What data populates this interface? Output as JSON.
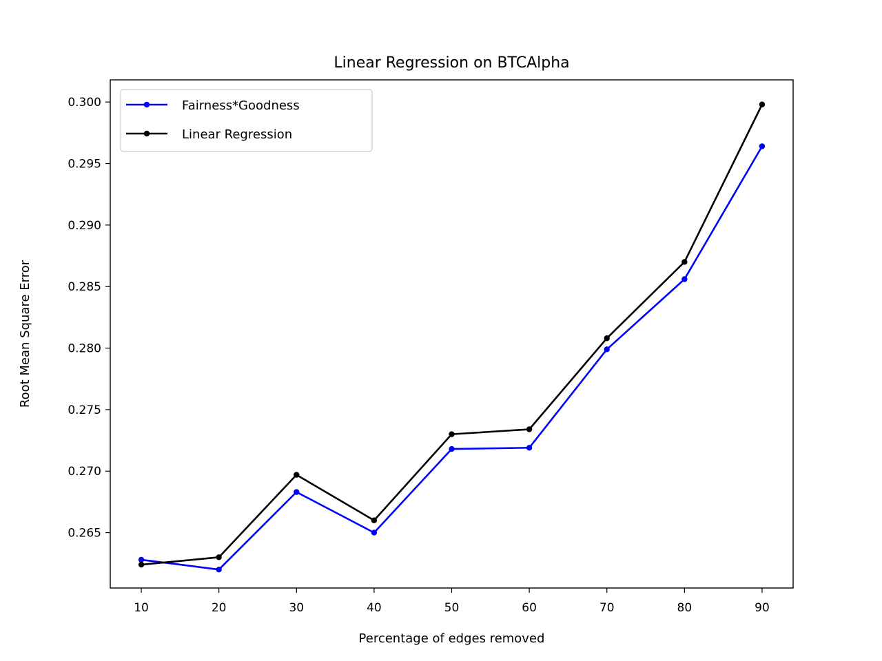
{
  "chart_data": {
    "type": "line",
    "title": "Linear Regression on BTCAlpha",
    "xlabel": "Percentage of edges removed",
    "ylabel": "Root Mean Square Error",
    "x": [
      10,
      20,
      30,
      40,
      50,
      60,
      70,
      80,
      90
    ],
    "xlim": [
      6,
      94
    ],
    "ylim": [
      0.2605,
      0.3018
    ],
    "xticks": [
      "10",
      "20",
      "30",
      "40",
      "50",
      "60",
      "70",
      "80",
      "90"
    ],
    "yticks": [
      "0.265",
      "0.270",
      "0.275",
      "0.280",
      "0.285",
      "0.290",
      "0.295",
      "0.300"
    ],
    "grid": false,
    "legend_position": "top-left",
    "series": [
      {
        "name": "Fairness*Goodness",
        "color": "#0000ff",
        "marker": "dot",
        "values": [
          0.2628,
          0.262,
          0.2683,
          0.265,
          0.2718,
          0.2719,
          0.2799,
          0.2856,
          0.2964
        ]
      },
      {
        "name": "Linear Regression",
        "color": "#000000",
        "marker": "dot",
        "values": [
          0.2624,
          0.263,
          0.2697,
          0.266,
          0.273,
          0.2734,
          0.2808,
          0.287,
          0.2998
        ]
      }
    ]
  }
}
